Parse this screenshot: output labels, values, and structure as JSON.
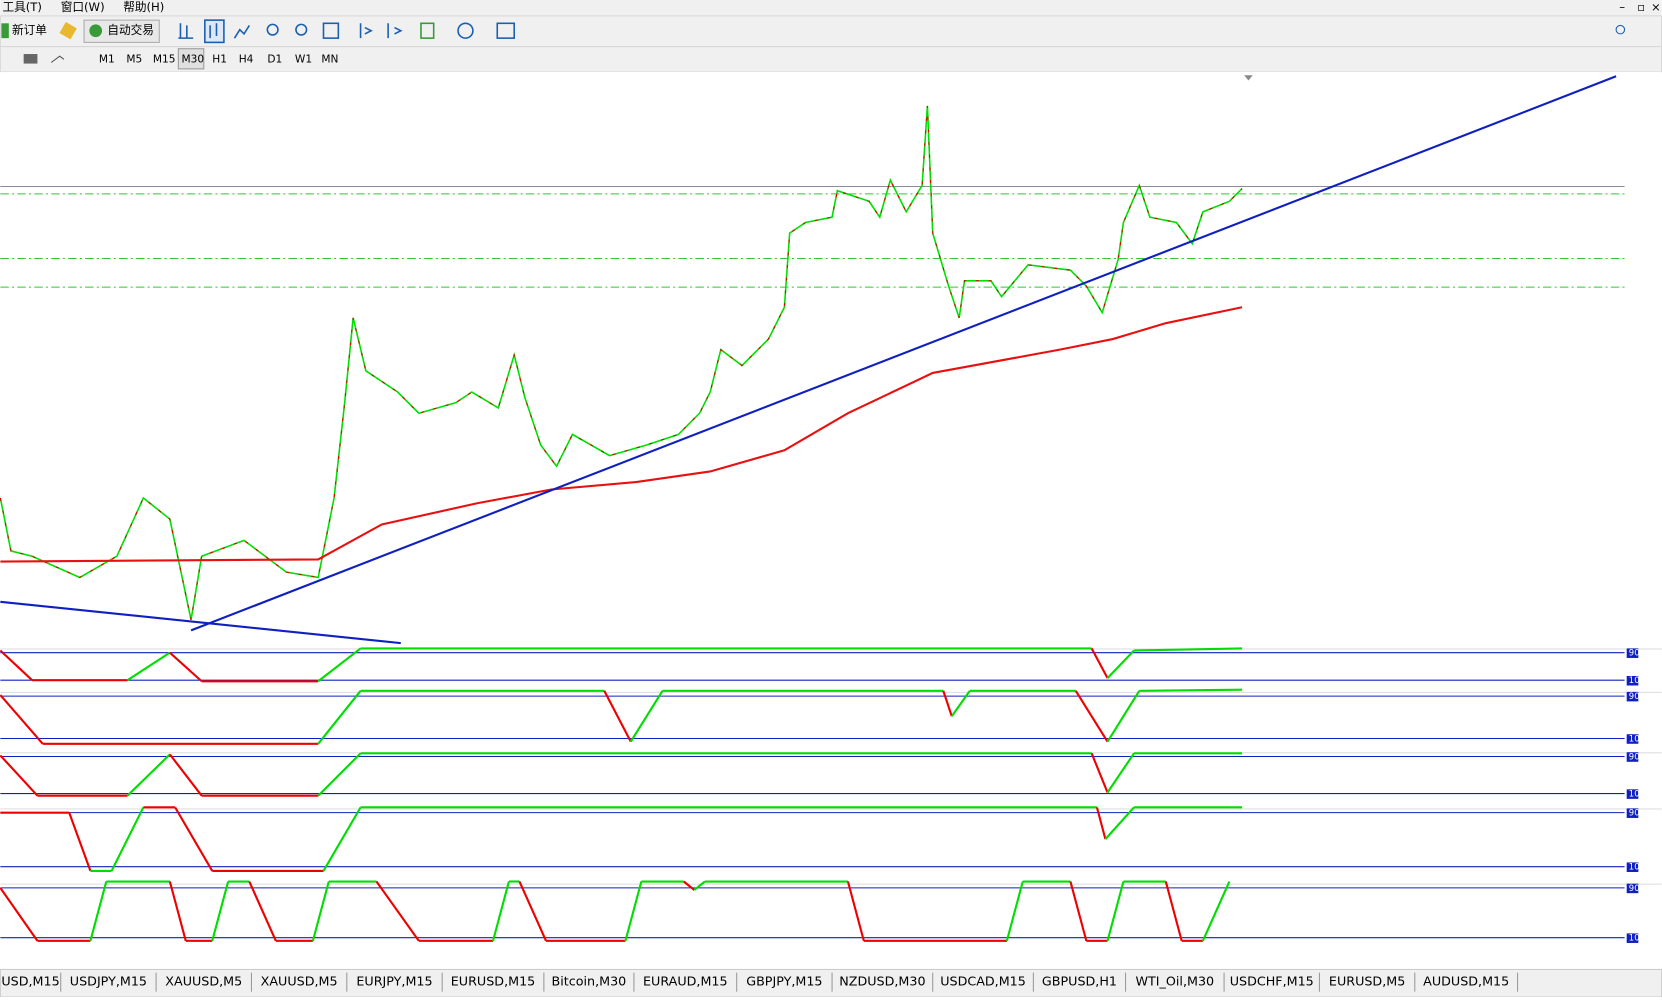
{
  "menu": [
    "工具(T)",
    "窗口(W)",
    "帮助(H)"
  ],
  "toolbar": {
    "new_order": "新订单",
    "auto_trading": "自动交易"
  },
  "timeframes": [
    "M1",
    "M5",
    "M15",
    "M30",
    "H1",
    "H4",
    "D1",
    "W1",
    "MN"
  ],
  "indicator_levels": [
    {
      "high": "90",
      "low": "10"
    },
    {
      "high": "90",
      "low": "10"
    },
    {
      "high": "90",
      "low": "10"
    },
    {
      "high": "90",
      "low": "10"
    },
    {
      "high": "90",
      "low": "10"
    }
  ],
  "tabs": [
    "USD,M15",
    "USDJPY,M15",
    "XAUUSD,M5",
    "XAUUSD,M5",
    "EURJPY,M15",
    "EURUSD,M15",
    "Bitcoin,M30",
    "EURAUD,M15",
    "GBPJPY,M15",
    "NZDUSD,M30",
    "USDCAD,M15",
    "GBPUSD,H1",
    "WTI_Oil,M30",
    "USDCHF,M15",
    "EURUSD,M5",
    "AUDUSD,M15"
  ]
}
